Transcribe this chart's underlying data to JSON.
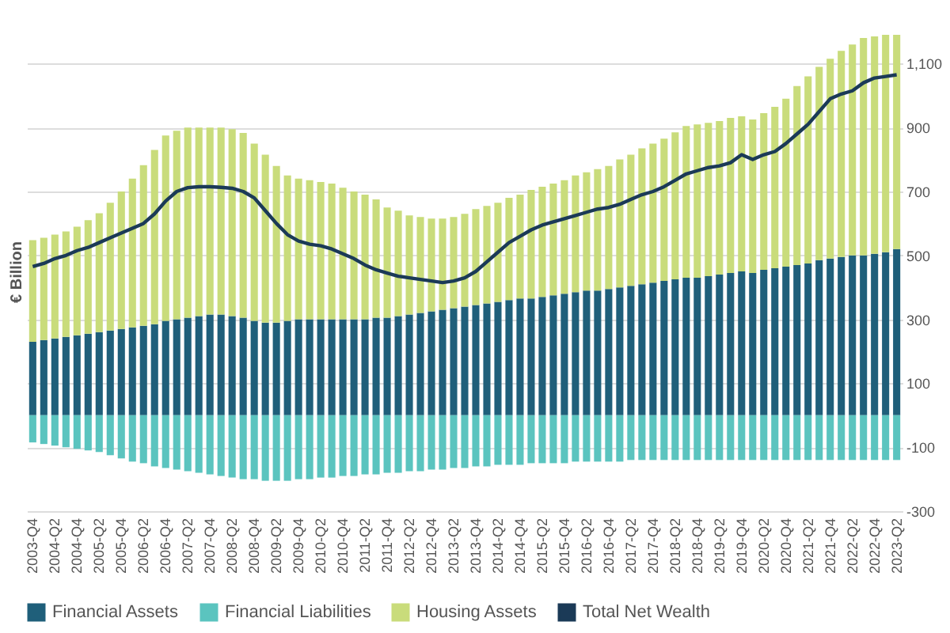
{
  "chart_data": {
    "type": "bar",
    "stacked": true,
    "ylabel": "€ Billion",
    "categories": [
      "2003-Q4",
      null,
      "2004-Q2",
      null,
      "2004-Q4",
      null,
      "2005-Q2",
      null,
      "2005-Q4",
      null,
      "2006-Q2",
      null,
      "2006-Q4",
      null,
      "2007-Q2",
      null,
      "2007-Q4",
      null,
      "2008-Q2",
      null,
      "2008-Q4",
      null,
      "2009-Q2",
      null,
      "2009-Q4",
      null,
      "2010-Q2",
      null,
      "2010-Q4",
      null,
      "2011-Q2",
      null,
      "2011-Q4",
      null,
      "2012-Q2",
      null,
      "2012-Q4",
      null,
      "2013-Q2",
      null,
      "2013-Q4",
      null,
      "2014-Q2",
      null,
      "2014-Q4",
      null,
      "2015-Q2",
      null,
      "2015-Q4",
      null,
      "2016-Q2",
      null,
      "2016-Q4",
      null,
      "2017-Q2",
      null,
      "2017-Q4",
      null,
      "2018-Q2",
      null,
      "2018-Q4",
      null,
      "2019-Q2",
      null,
      "2019-Q4",
      null,
      "2020-Q2",
      null,
      "2020-Q4",
      null,
      "2021-Q2",
      null,
      "2021-Q4",
      null,
      "2022-Q2",
      null,
      "2022-Q4",
      null,
      "2023-Q2"
    ],
    "series": [
      {
        "name": "Financial Assets",
        "color": "#1f5f7a",
        "values": [
          230,
          235,
          240,
          245,
          250,
          255,
          260,
          265,
          270,
          275,
          280,
          285,
          295,
          300,
          305,
          310,
          315,
          315,
          310,
          305,
          295,
          290,
          290,
          295,
          300,
          300,
          300,
          300,
          300,
          300,
          300,
          305,
          305,
          310,
          315,
          320,
          325,
          330,
          335,
          340,
          345,
          350,
          355,
          360,
          365,
          365,
          370,
          375,
          380,
          385,
          390,
          390,
          395,
          400,
          405,
          410,
          415,
          420,
          425,
          430,
          430,
          435,
          440,
          445,
          450,
          445,
          455,
          460,
          465,
          470,
          475,
          485,
          490,
          495,
          500,
          500,
          505,
          510,
          520
        ]
      },
      {
        "name": "Financial Liabilities",
        "color": "#5bc4bf",
        "values": [
          -85,
          -90,
          -95,
          -100,
          -105,
          -110,
          -115,
          -125,
          -135,
          -145,
          -150,
          -160,
          -165,
          -170,
          -175,
          -180,
          -185,
          -190,
          -195,
          -200,
          -200,
          -205,
          -205,
          -205,
          -200,
          -200,
          -195,
          -195,
          -190,
          -190,
          -185,
          -185,
          -180,
          -180,
          -175,
          -175,
          -170,
          -170,
          -165,
          -165,
          -160,
          -160,
          -155,
          -155,
          -155,
          -150,
          -150,
          -150,
          -150,
          -145,
          -145,
          -145,
          -145,
          -145,
          -140,
          -140,
          -140,
          -140,
          -140,
          -140,
          -140,
          -140,
          -140,
          -140,
          -140,
          -140,
          -140,
          -140,
          -140,
          -140,
          -140,
          -140,
          -140,
          -140,
          -140,
          -140,
          -140,
          -140,
          -140
        ]
      },
      {
        "name": "Housing Assets",
        "color": "#c9dc7b",
        "values": [
          318,
          320,
          325,
          330,
          340,
          355,
          372,
          400,
          430,
          465,
          502,
          545,
          580,
          590,
          595,
          590,
          585,
          585,
          585,
          578,
          555,
          525,
          490,
          455,
          440,
          435,
          430,
          425,
          412,
          400,
          390,
          370,
          345,
          330,
          310,
          300,
          290,
          285,
          285,
          290,
          300,
          305,
          310,
          320,
          325,
          340,
          345,
          350,
          355,
          365,
          370,
          380,
          385,
          400,
          410,
          425,
          435,
          445,
          460,
          475,
          480,
          480,
          480,
          485,
          485,
          480,
          490,
          505,
          525,
          560,
          585,
          605,
          625,
          645,
          660,
          680,
          680,
          680,
          670
        ]
      },
      {
        "name": "Total Net Wealth",
        "type": "line",
        "color": "#1b3a57",
        "values": [
          465,
          475,
          490,
          500,
          515,
          525,
          540,
          555,
          570,
          585,
          600,
          630,
          670,
          700,
          712,
          715,
          715,
          713,
          710,
          700,
          680,
          640,
          600,
          565,
          545,
          535,
          530,
          520,
          505,
          490,
          470,
          455,
          445,
          435,
          430,
          425,
          420,
          415,
          420,
          430,
          450,
          480,
          510,
          540,
          560,
          580,
          595,
          605,
          615,
          625,
          635,
          645,
          650,
          660,
          675,
          690,
          700,
          715,
          735,
          755,
          765,
          775,
          780,
          790,
          815,
          800,
          815,
          825,
          850,
          880,
          910,
          950,
          990,
          1005,
          1015,
          1040,
          1055,
          1060,
          1065
        ]
      }
    ],
    "ylim": [
      -300,
      1200
    ],
    "yticks": [
      -300,
      -100,
      100,
      300,
      500,
      700,
      900,
      {
        "value": 1100,
        "label": "1,100"
      }
    ],
    "grid": "y",
    "legend": "bottom"
  }
}
